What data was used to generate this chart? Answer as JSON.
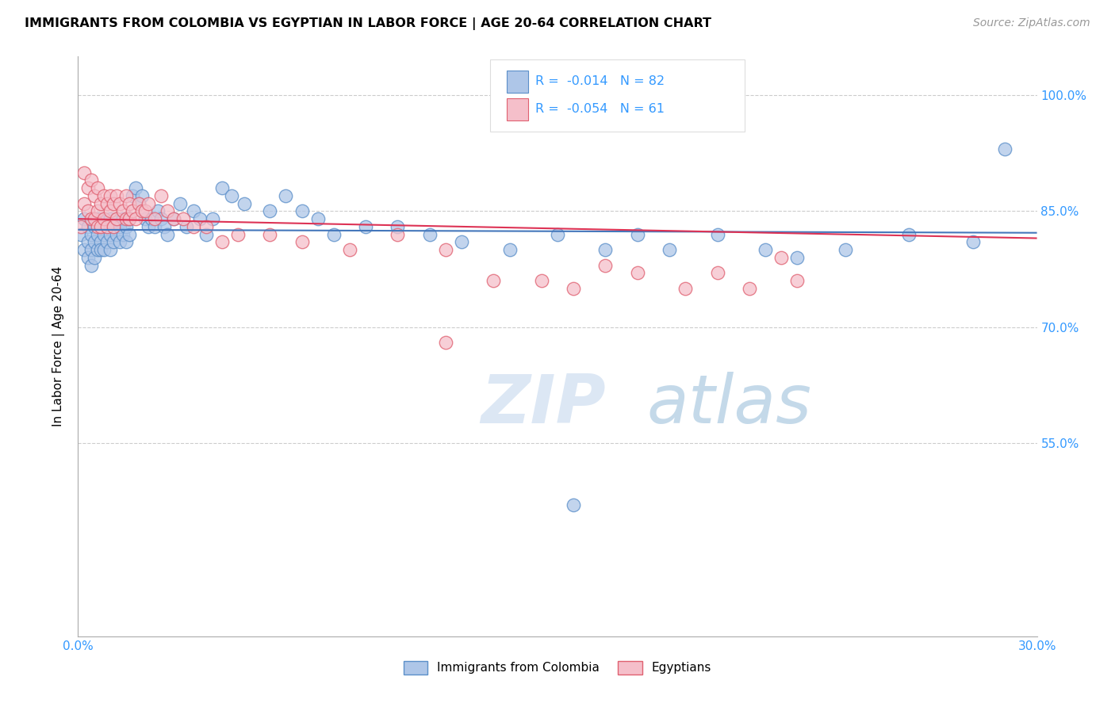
{
  "title": "IMMIGRANTS FROM COLOMBIA VS EGYPTIAN IN LABOR FORCE | AGE 20-64 CORRELATION CHART",
  "source": "Source: ZipAtlas.com",
  "ylabel": "In Labor Force | Age 20-64",
  "x_min": 0.0,
  "x_max": 0.3,
  "y_min": 0.3,
  "y_max": 1.05,
  "right_yticks": [
    1.0,
    0.85,
    0.7,
    0.55
  ],
  "right_ytick_labels": [
    "100.0%",
    "85.0%",
    "70.0%",
    "55.0%"
  ],
  "colombia_color": "#aec6e8",
  "colombia_edge": "#5b8fc9",
  "egypt_color": "#f5bfca",
  "egypt_edge": "#e06070",
  "colombia_line_color": "#4477bb",
  "egypt_line_color": "#dd3355",
  "colombia_R": -0.014,
  "colombia_N": 82,
  "egypt_R": -0.054,
  "egypt_N": 61,
  "legend_label_colombia": "Immigrants from Colombia",
  "legend_label_egypt": "Egyptians",
  "watermark_zip": "ZIP",
  "watermark_atlas": "atlas",
  "colombia_x": [
    0.001,
    0.002,
    0.002,
    0.003,
    0.003,
    0.003,
    0.004,
    0.004,
    0.004,
    0.005,
    0.005,
    0.005,
    0.006,
    0.006,
    0.006,
    0.007,
    0.007,
    0.007,
    0.008,
    0.008,
    0.008,
    0.009,
    0.009,
    0.01,
    0.01,
    0.01,
    0.011,
    0.011,
    0.012,
    0.012,
    0.013,
    0.013,
    0.014,
    0.014,
    0.015,
    0.015,
    0.016,
    0.016,
    0.017,
    0.018,
    0.019,
    0.02,
    0.021,
    0.022,
    0.023,
    0.024,
    0.025,
    0.026,
    0.027,
    0.028,
    0.03,
    0.032,
    0.034,
    0.036,
    0.038,
    0.04,
    0.042,
    0.045,
    0.048,
    0.052,
    0.06,
    0.065,
    0.07,
    0.075,
    0.08,
    0.09,
    0.1,
    0.11,
    0.12,
    0.135,
    0.15,
    0.165,
    0.175,
    0.185,
    0.2,
    0.215,
    0.225,
    0.24,
    0.26,
    0.28,
    0.155,
    0.29
  ],
  "colombia_y": [
    0.82,
    0.84,
    0.8,
    0.83,
    0.81,
    0.79,
    0.82,
    0.8,
    0.78,
    0.83,
    0.81,
    0.79,
    0.84,
    0.82,
    0.8,
    0.83,
    0.81,
    0.8,
    0.84,
    0.82,
    0.8,
    0.83,
    0.81,
    0.84,
    0.82,
    0.8,
    0.83,
    0.81,
    0.84,
    0.82,
    0.83,
    0.81,
    0.84,
    0.82,
    0.83,
    0.81,
    0.84,
    0.82,
    0.87,
    0.88,
    0.86,
    0.87,
    0.84,
    0.83,
    0.84,
    0.83,
    0.85,
    0.84,
    0.83,
    0.82,
    0.84,
    0.86,
    0.83,
    0.85,
    0.84,
    0.82,
    0.84,
    0.88,
    0.87,
    0.86,
    0.85,
    0.87,
    0.85,
    0.84,
    0.82,
    0.83,
    0.83,
    0.82,
    0.81,
    0.8,
    0.82,
    0.8,
    0.82,
    0.8,
    0.82,
    0.8,
    0.79,
    0.8,
    0.82,
    0.81,
    0.47,
    0.93
  ],
  "egypt_x": [
    0.001,
    0.002,
    0.002,
    0.003,
    0.003,
    0.004,
    0.004,
    0.005,
    0.005,
    0.006,
    0.006,
    0.006,
    0.007,
    0.007,
    0.008,
    0.008,
    0.009,
    0.009,
    0.01,
    0.01,
    0.011,
    0.011,
    0.012,
    0.012,
    0.013,
    0.014,
    0.015,
    0.015,
    0.016,
    0.016,
    0.017,
    0.018,
    0.019,
    0.02,
    0.021,
    0.022,
    0.024,
    0.026,
    0.028,
    0.03,
    0.033,
    0.036,
    0.04,
    0.045,
    0.05,
    0.06,
    0.07,
    0.085,
    0.1,
    0.115,
    0.13,
    0.145,
    0.155,
    0.165,
    0.175,
    0.19,
    0.2,
    0.21,
    0.22,
    0.225,
    0.115
  ],
  "egypt_y": [
    0.83,
    0.9,
    0.86,
    0.88,
    0.85,
    0.89,
    0.84,
    0.87,
    0.84,
    0.88,
    0.85,
    0.83,
    0.86,
    0.83,
    0.87,
    0.84,
    0.86,
    0.83,
    0.87,
    0.85,
    0.86,
    0.83,
    0.87,
    0.84,
    0.86,
    0.85,
    0.87,
    0.84,
    0.86,
    0.84,
    0.85,
    0.84,
    0.86,
    0.85,
    0.85,
    0.86,
    0.84,
    0.87,
    0.85,
    0.84,
    0.84,
    0.83,
    0.83,
    0.81,
    0.82,
    0.82,
    0.81,
    0.8,
    0.82,
    0.8,
    0.76,
    0.76,
    0.75,
    0.78,
    0.77,
    0.75,
    0.77,
    0.75,
    0.79,
    0.76,
    0.68
  ]
}
